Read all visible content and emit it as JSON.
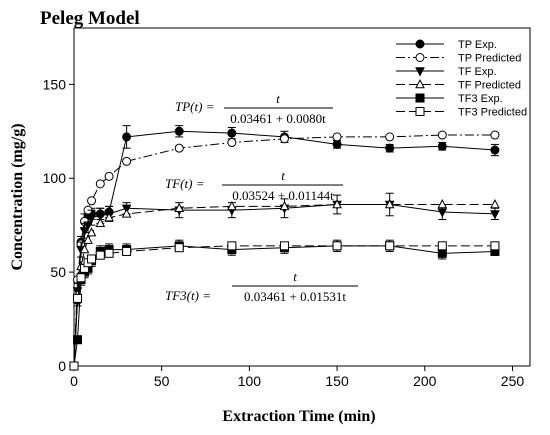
{
  "chart_data": {
    "type": "scatter",
    "title": "Peleg Model",
    "xlabel": "Extraction Time (min)",
    "ylabel": "Concentration (mg/g)",
    "xlim": [
      0,
      260
    ],
    "ylim": [
      0,
      180
    ],
    "xticks": [
      0,
      50,
      100,
      150,
      200,
      250
    ],
    "yticks": [
      0,
      50,
      100,
      150
    ],
    "grid": false,
    "legend_placement": "top-right",
    "series": [
      {
        "name": "TP Exp.",
        "marker": "circle",
        "filled": true,
        "line": "solid",
        "x": [
          0,
          2,
          4,
          6,
          8,
          10,
          15,
          20,
          30,
          60,
          90,
          120,
          150,
          180,
          210,
          240
        ],
        "y": [
          0,
          35,
          66,
          77,
          80,
          81,
          81,
          82,
          122,
          125,
          124,
          122,
          118,
          116,
          117,
          115
        ],
        "err": [
          0,
          3,
          3,
          4,
          3,
          3,
          3,
          3,
          6,
          3,
          3,
          3,
          2,
          2,
          2,
          3
        ]
      },
      {
        "name": "TP Predicted",
        "marker": "circle",
        "filled": false,
        "line": "dashdot",
        "x": [
          0,
          2,
          4,
          6,
          8,
          10,
          15,
          20,
          30,
          60,
          90,
          120,
          150,
          180,
          210,
          240
        ],
        "y": [
          0,
          46,
          65,
          77,
          83,
          88,
          97,
          101,
          109,
          116,
          119,
          121,
          122,
          122,
          123,
          123
        ],
        "err": []
      },
      {
        "name": "TF Exp.",
        "marker": "triangle-down",
        "filled": true,
        "line": "solid",
        "x": [
          0,
          2,
          4,
          6,
          8,
          10,
          15,
          20,
          30,
          60,
          90,
          120,
          150,
          180,
          210,
          240
        ],
        "y": [
          0,
          40,
          62,
          72,
          75,
          79,
          80,
          81,
          84,
          83,
          83,
          84,
          86,
          86,
          82,
          81
        ],
        "err": [
          0,
          4,
          4,
          4,
          4,
          4,
          4,
          4,
          3,
          4,
          4,
          5,
          5,
          6,
          4,
          3
        ]
      },
      {
        "name": "TF  Predicted",
        "marker": "triangle-up",
        "filled": false,
        "line": "dashed",
        "x": [
          0,
          2,
          4,
          6,
          8,
          10,
          15,
          20,
          30,
          60,
          90,
          120,
          150,
          180,
          210,
          240
        ],
        "y": [
          0,
          38,
          53,
          62,
          67,
          71,
          76,
          79,
          81,
          84,
          85,
          85,
          86,
          86,
          86,
          86
        ],
        "err": []
      },
      {
        "name": "TF3 Exp.",
        "marker": "square",
        "filled": true,
        "line": "solid",
        "x": [
          0,
          2,
          4,
          6,
          8,
          10,
          15,
          20,
          30,
          60,
          90,
          120,
          150,
          180,
          210,
          240
        ],
        "y": [
          0,
          14,
          46,
          50,
          52,
          56,
          61,
          62,
          62,
          64,
          62,
          63,
          64,
          64,
          60,
          61
        ],
        "err": [
          0,
          2,
          3,
          3,
          3,
          3,
          3,
          3,
          3,
          3,
          3,
          3,
          3,
          3,
          3,
          2
        ]
      },
      {
        "name": "TF3 Predicted",
        "marker": "square",
        "filled": false,
        "line": "dashed",
        "x": [
          0,
          2,
          4,
          6,
          8,
          10,
          15,
          20,
          30,
          60,
          90,
          120,
          150,
          180,
          210,
          240
        ],
        "y": [
          0,
          36,
          47,
          52,
          55,
          57,
          59,
          60,
          61,
          63,
          64,
          64,
          64,
          64,
          64,
          64
        ],
        "err": []
      }
    ],
    "annotations": [
      {
        "lhs": "TP(t) =",
        "numerator": "t",
        "denominator": "0.03461 + 0.0080t"
      },
      {
        "lhs": "TF(t) =",
        "numerator": "t",
        "denominator": "0.03524 + 0.01144t"
      },
      {
        "lhs": "TF3(t) =",
        "numerator": "t",
        "denominator": "0.03461 + 0.01531t"
      }
    ]
  }
}
